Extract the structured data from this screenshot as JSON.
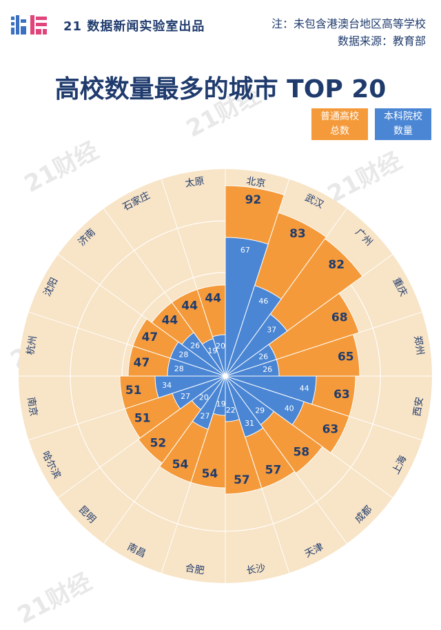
{
  "header": {
    "logo_text": "21财经",
    "brand": "21 数据新闻实验室出品",
    "note_line1": "注：未包含港澳台地区高等学校",
    "note_line2": "数据来源：教育部"
  },
  "watermark_text": "21财经",
  "colors": {
    "background_disc": "#f8e4c6",
    "total_bar": "#f49a3a",
    "undergrad_bar": "#4a86d4",
    "text_dark": "#1f3b6d"
  },
  "chart_data": {
    "type": "bar",
    "layout": "radial",
    "title": "高校数量最多的城市 TOP 20",
    "categories": [
      "北京",
      "武汉",
      "广州",
      "重庆",
      "郑州",
      "西安",
      "上海",
      "成都",
      "天津",
      "长沙",
      "合肥",
      "南昌",
      "昆明",
      "哈尔滨",
      "南京",
      "杭州",
      "沈阳",
      "济南",
      "石家庄",
      "太原"
    ],
    "series": [
      {
        "name": "普通高校总数",
        "values": [
          92,
          83,
          82,
          68,
          65,
          63,
          63,
          58,
          57,
          57,
          54,
          54,
          52,
          51,
          51,
          47,
          47,
          44,
          44,
          44
        ]
      },
      {
        "name": "本科院校数量",
        "values": [
          67,
          46,
          37,
          26,
          26,
          44,
          40,
          29,
          31,
          22,
          19,
          27,
          20,
          27,
          34,
          28,
          28,
          26,
          19,
          20
        ]
      }
    ],
    "legend": [
      "普通高校总数",
      "本科院校数量"
    ],
    "legend_position": "top-right",
    "direction": "clockwise from top"
  }
}
